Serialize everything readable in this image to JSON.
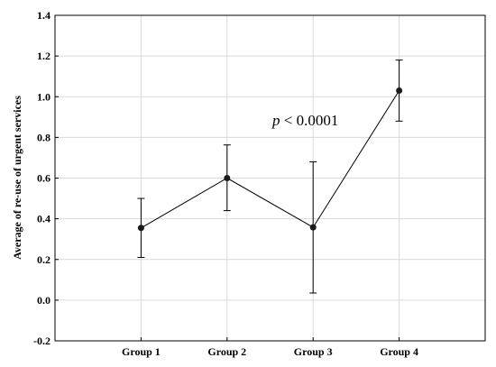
{
  "chart_data": {
    "type": "line",
    "title": "",
    "xlabel": "",
    "ylabel": "Average of re-use of urgent services",
    "categories": [
      "Group 1",
      "Group 2",
      "Group 3",
      "Group 4"
    ],
    "series": [
      {
        "values": [
          0.355,
          0.6,
          0.358,
          1.03
        ],
        "lower": [
          0.21,
          0.44,
          0.035,
          0.88
        ],
        "upper": [
          0.5,
          0.763,
          0.68,
          1.18
        ]
      }
    ],
    "ylim": [
      -0.2,
      1.4
    ],
    "yticks": [
      -0.2,
      0.0,
      0.2,
      0.4,
      0.6,
      0.8,
      1.0,
      1.2,
      1.4
    ],
    "ytick_labels": [
      "-0.2",
      "0.0",
      "0.2",
      "0.4",
      "0.6",
      "0.8",
      "1.0",
      "1.2",
      "1.4"
    ],
    "grid": true,
    "annotation": {
      "italic_part": "p",
      "rest": " < 0.0001"
    }
  }
}
